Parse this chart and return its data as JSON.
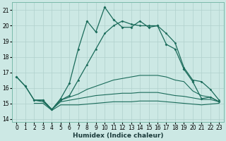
{
  "xlabel": "Humidex (Indice chaleur)",
  "background_color": "#cce8e4",
  "grid_color": "#b0d0cc",
  "line_color": "#1a6b5a",
  "xlim": [
    -0.5,
    23.5
  ],
  "ylim": [
    13.8,
    21.5
  ],
  "yticks": [
    14,
    15,
    16,
    17,
    18,
    19,
    20,
    21
  ],
  "xticks": [
    0,
    1,
    2,
    3,
    4,
    5,
    6,
    7,
    8,
    9,
    10,
    11,
    12,
    13,
    14,
    15,
    16,
    17,
    18,
    19,
    20,
    21,
    22,
    23
  ],
  "line_main_x": [
    0,
    1,
    2,
    3,
    4,
    5,
    6,
    7,
    8,
    9,
    10,
    11,
    12,
    13,
    14,
    15,
    16,
    17,
    18,
    19,
    20,
    21,
    22,
    23
  ],
  "line_main_y": [
    16.7,
    16.1,
    15.2,
    15.2,
    14.6,
    15.3,
    16.3,
    18.5,
    20.3,
    19.6,
    21.2,
    20.4,
    19.9,
    19.9,
    20.3,
    19.9,
    20.0,
    18.8,
    18.5,
    17.2,
    16.4,
    15.3,
    15.4,
    15.1
  ],
  "line_smooth_x": [
    0,
    1,
    2,
    3,
    4,
    5,
    6,
    7,
    8,
    9,
    10,
    11,
    12,
    13,
    14,
    15,
    16,
    17,
    18,
    19,
    20,
    21,
    22,
    23
  ],
  "line_smooth_y": [
    16.7,
    16.1,
    15.2,
    15.2,
    14.6,
    15.2,
    15.5,
    16.5,
    17.5,
    18.5,
    19.5,
    20.0,
    20.3,
    20.1,
    20.0,
    20.0,
    20.0,
    19.5,
    18.9,
    17.3,
    16.5,
    16.4,
    15.9,
    15.2
  ],
  "line_upper_x": [
    2,
    3,
    4,
    5,
    6,
    7,
    8,
    9,
    10,
    11,
    12,
    13,
    14,
    15,
    16,
    17,
    18,
    19,
    20,
    21,
    22,
    23
  ],
  "line_upper_y": [
    15.2,
    15.2,
    14.6,
    15.2,
    15.4,
    15.6,
    15.9,
    16.1,
    16.3,
    16.5,
    16.6,
    16.7,
    16.8,
    16.8,
    16.8,
    16.7,
    16.5,
    16.4,
    15.8,
    15.5,
    15.4,
    15.1
  ],
  "line_mid_x": [
    2,
    3,
    4,
    5,
    6,
    7,
    8,
    9,
    10,
    11,
    12,
    13,
    14,
    15,
    16,
    17,
    18,
    19,
    20,
    21,
    22,
    23
  ],
  "line_mid_y": [
    15.2,
    15.1,
    14.6,
    15.1,
    15.2,
    15.3,
    15.4,
    15.5,
    15.55,
    15.6,
    15.65,
    15.65,
    15.7,
    15.7,
    15.7,
    15.6,
    15.5,
    15.45,
    15.35,
    15.25,
    15.25,
    15.1
  ],
  "line_low_x": [
    2,
    3,
    4,
    5,
    6,
    7,
    8,
    9,
    10,
    11,
    12,
    13,
    14,
    15,
    16,
    17,
    18,
    19,
    20,
    21,
    22,
    23
  ],
  "line_low_y": [
    15.0,
    15.0,
    14.55,
    14.9,
    14.9,
    14.9,
    14.95,
    15.0,
    15.05,
    15.1,
    15.1,
    15.1,
    15.15,
    15.15,
    15.15,
    15.1,
    15.05,
    15.0,
    14.95,
    14.9,
    14.95,
    15.0
  ]
}
